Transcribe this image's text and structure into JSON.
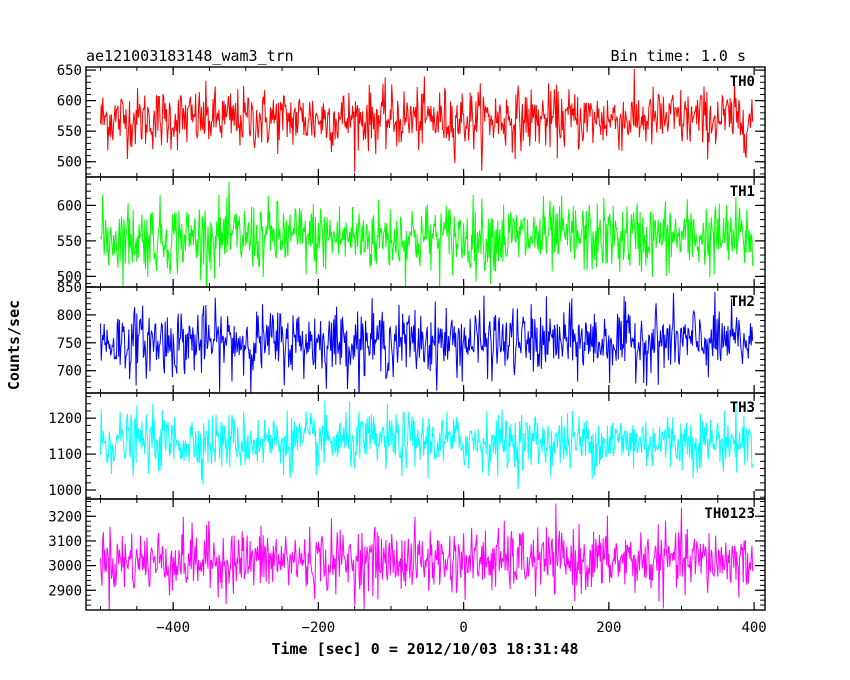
{
  "header": {
    "title": "ae121003183148_wam3_trn",
    "bin_time": "Bin time: 1.0 s"
  },
  "chart_data": {
    "type": "line",
    "xlabel": "Time [sec] 0 = 2012/10/03 18:31:48",
    "ylabel": "Counts/sec",
    "xlim": [
      -520,
      415
    ],
    "x_ticks": [
      -400,
      -200,
      0,
      200,
      400
    ],
    "x_tick_labels": [
      "−400",
      "−200",
      "0",
      "200",
      "400"
    ],
    "x_start": -500,
    "x_end": 398,
    "grid": false,
    "panels": [
      {
        "name": "TH0",
        "color": "#ff0000",
        "ylim": [
          475,
          655
        ],
        "yticks": [
          500,
          550,
          600,
          650
        ],
        "mean": 570,
        "sigma": 25
      },
      {
        "name": "TH1",
        "color": "#00ff00",
        "ylim": [
          485,
          640
        ],
        "yticks": [
          500,
          550,
          600
        ],
        "mean": 555,
        "sigma": 25
      },
      {
        "name": "TH2",
        "color": "#0000ff",
        "ylim": [
          660,
          850
        ],
        "yticks": [
          700,
          750,
          800,
          850
        ],
        "mean": 752,
        "sigma": 30
      },
      {
        "name": "TH3",
        "color": "#00ffff",
        "ylim": [
          975,
          1270
        ],
        "yticks": [
          1000,
          1100,
          1200
        ],
        "mean": 1135,
        "sigma": 40
      },
      {
        "name": "TH0123",
        "color": "#ff00ff",
        "ylim": [
          2820,
          3270
        ],
        "yticks": [
          2900,
          3000,
          3100,
          3200
        ],
        "mean": 3020,
        "sigma": 65
      }
    ]
  }
}
